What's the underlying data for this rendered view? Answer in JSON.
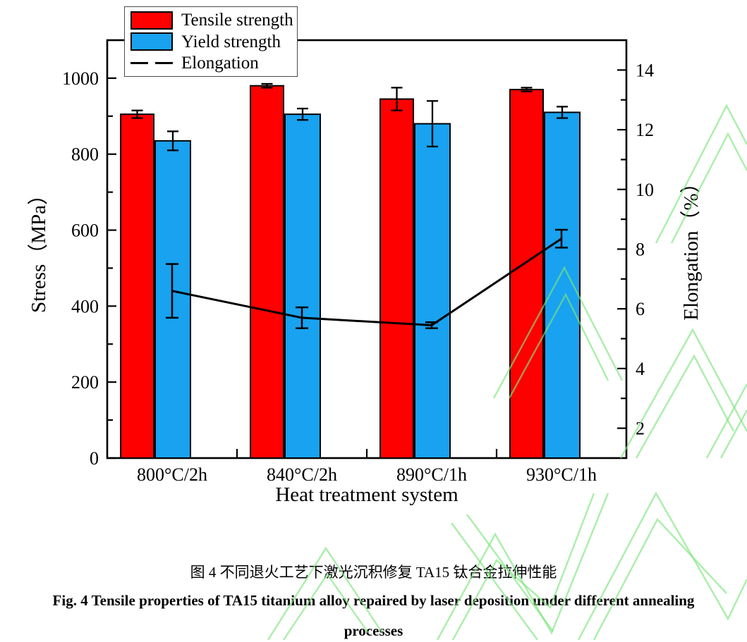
{
  "figure": {
    "caption_cn": "图 4  不同退火工艺下激光沉积修复 TA15 钛合金拉伸性能",
    "caption_en_line1": "Fig. 4 Tensile properties of TA15 titanium alloy repaired by laser deposition under different annealing",
    "caption_en_line2": "processes"
  },
  "chart_data": {
    "type": "bar",
    "categories": [
      "800°C/2h",
      "840°C/2h",
      "890°C/1h",
      "930°C/1h"
    ],
    "xlabel": "Heat treatment system",
    "left_axis": {
      "label": "Stress（MPa）",
      "range": [
        0,
        1100
      ],
      "major_step": 200,
      "minor_step": 100,
      "major_ticks": [
        0,
        200,
        400,
        600,
        800,
        1000
      ]
    },
    "right_axis": {
      "label": "Elongation（%）",
      "range": [
        1,
        15
      ],
      "major_step": 2,
      "minor_step": 1,
      "major_ticks": [
        2,
        4,
        6,
        8,
        10,
        12,
        14
      ]
    },
    "series": [
      {
        "name": "Tensile strength",
        "type": "bar",
        "axis": "left",
        "color": "#fe0000",
        "values": [
          905,
          980,
          945,
          970
        ],
        "errors": [
          10,
          5,
          30,
          5
        ]
      },
      {
        "name": "Yield strength",
        "type": "bar",
        "axis": "left",
        "color": "#18a2f0",
        "values": [
          835,
          905,
          880,
          910
        ],
        "errors": [
          25,
          15,
          60,
          15
        ]
      },
      {
        "name": "Elongation",
        "type": "line",
        "axis": "right",
        "color": "#000000",
        "values": [
          6.6,
          5.7,
          5.45,
          8.35
        ],
        "errors": [
          0.9,
          0.35,
          0.1,
          0.3
        ]
      }
    ],
    "legend": {
      "position": "top-left",
      "entries": [
        "Tensile strength",
        "Yield strength",
        "Elongation"
      ]
    },
    "grid": false,
    "watermark_color": "#7de57d"
  }
}
